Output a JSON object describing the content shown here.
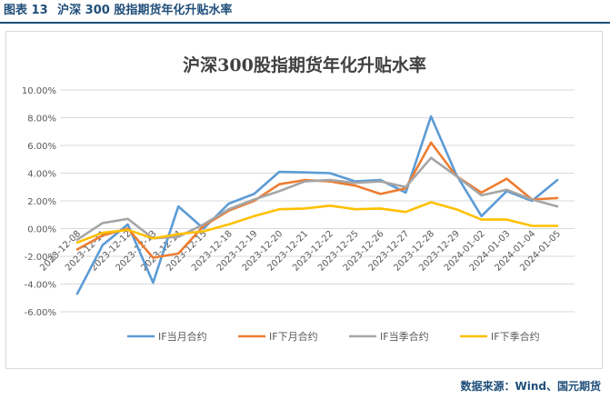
{
  "header": {
    "figure_number": "图表 13",
    "figure_title": "沪深 300 股指期货年化升贴水率"
  },
  "source": "数据来源：Wind、国元期货",
  "colors": {
    "header": "#1f4e79",
    "grid": "#d9d9d9"
  },
  "chart_data": {
    "type": "line",
    "title": "沪深300股指期货年化升贴水率",
    "xlabel": "",
    "ylabel": "",
    "ylim": [
      -6,
      10
    ],
    "yticks": [
      "10.00%",
      "8.00%",
      "6.00%",
      "4.00%",
      "2.00%",
      "0.00%",
      "-2.00%",
      "-4.00%",
      "-6.00%"
    ],
    "ytick_values": [
      10,
      8,
      6,
      4,
      2,
      0,
      -2,
      -4,
      -6
    ],
    "grid": true,
    "legend_position": "bottom",
    "categories": [
      "2023-12-08",
      "2023-12-11",
      "2023-12-12",
      "2023-12-13",
      "2023-12-14",
      "2023-12-15",
      "2023-12-18",
      "2023-12-19",
      "2023-12-20",
      "2023-12-21",
      "2023-12-22",
      "2023-12-25",
      "2023-12-26",
      "2023-12-27",
      "2023-12-28",
      "2023-12-29",
      "2024-01-02",
      "2024-01-03",
      "2024-01-04",
      "2024-01-05"
    ],
    "series": [
      {
        "name": "IF当月合约",
        "color": "#5b9bd5",
        "values": [
          -4.7,
          -1.2,
          0.3,
          -3.9,
          1.6,
          0.0,
          1.8,
          2.5,
          4.1,
          4.05,
          4.0,
          3.4,
          3.5,
          2.6,
          8.1,
          3.9,
          0.9,
          2.7,
          2.0,
          3.5
        ]
      },
      {
        "name": "IF下月合约",
        "color": "#ed7d31",
        "values": [
          -1.5,
          -0.5,
          0.0,
          -2.1,
          -1.8,
          0.2,
          1.3,
          2.0,
          3.2,
          3.5,
          3.4,
          3.1,
          2.5,
          2.9,
          6.2,
          3.8,
          2.6,
          3.6,
          2.1,
          2.2
        ]
      },
      {
        "name": "IF当季合约",
        "color": "#a5a5a5",
        "values": [
          -0.8,
          0.4,
          0.7,
          -0.7,
          -0.6,
          0.3,
          1.4,
          2.1,
          2.7,
          3.4,
          3.5,
          3.3,
          3.4,
          3.0,
          5.1,
          3.8,
          2.4,
          2.8,
          2.1,
          1.6
        ]
      },
      {
        "name": "IF下季合约",
        "color": "#ffc000",
        "values": [
          -1.0,
          -0.3,
          -0.1,
          -0.7,
          -0.4,
          -0.2,
          0.3,
          0.9,
          1.4,
          1.45,
          1.65,
          1.4,
          1.45,
          1.2,
          1.9,
          1.4,
          0.65,
          0.65,
          0.2,
          0.2
        ]
      }
    ]
  }
}
